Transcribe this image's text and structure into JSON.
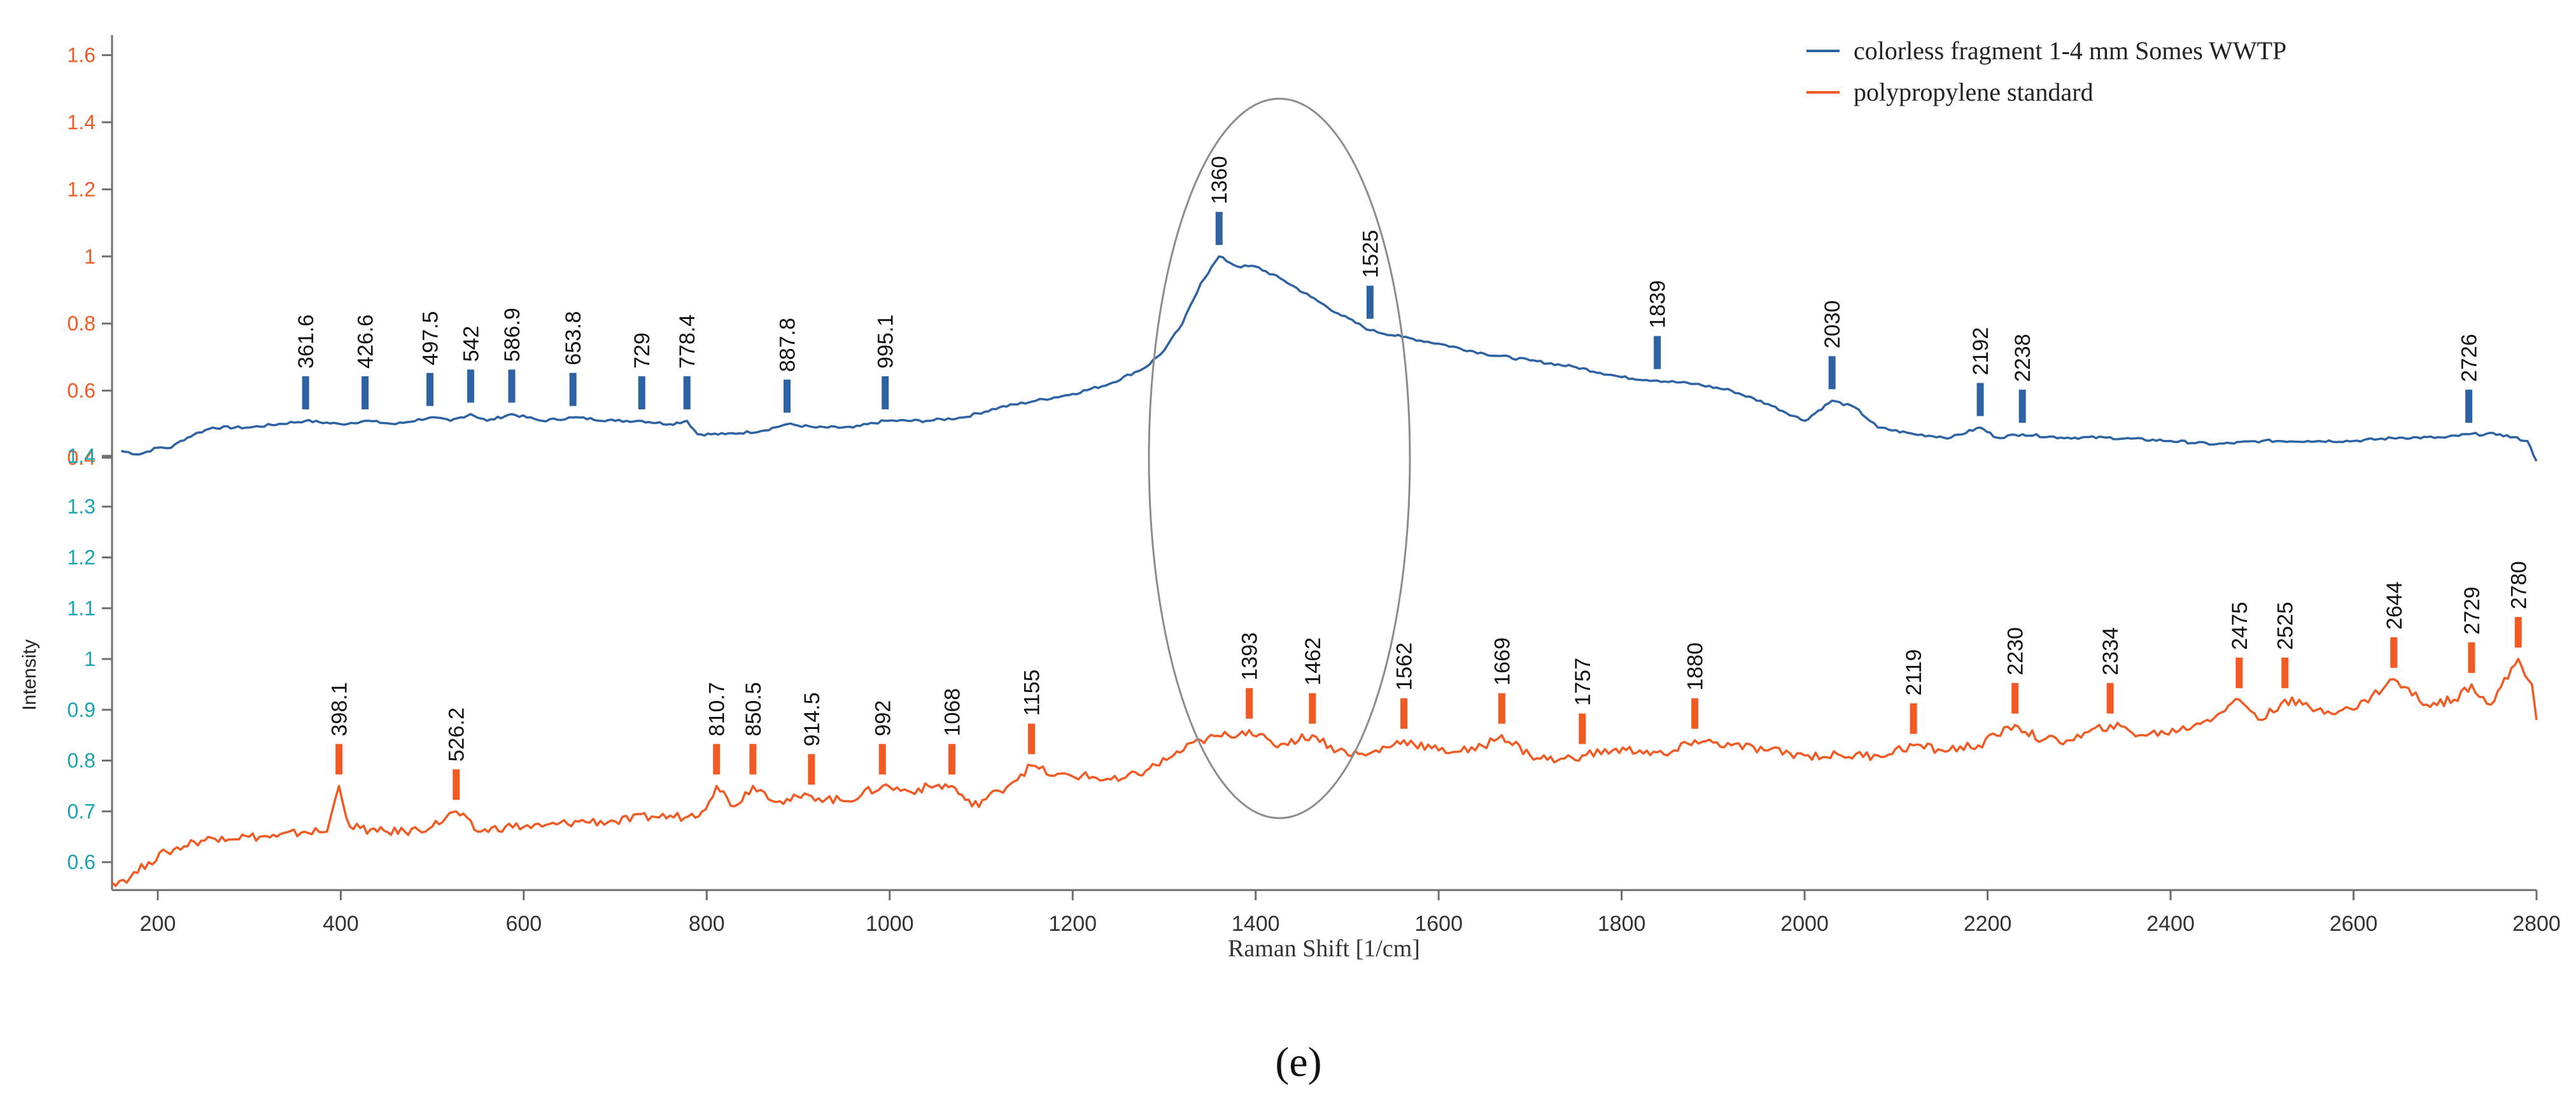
{
  "figure_label": "(e)",
  "chart_data": {
    "type": "line",
    "xlabel": "Raman Shift [1/cm]",
    "ylabel": "Intensity",
    "xlim": [
      150,
      2800
    ],
    "x_ticks": [
      "200",
      "400",
      "600",
      "800",
      "1000",
      "1200",
      "1400",
      "1600",
      "1800",
      "2000",
      "2200",
      "2400",
      "2600",
      "2800"
    ],
    "grid": false,
    "legend_position": "top-right",
    "annotation": "ellipse highlighting the 1360 / 1393 / 1462 / 1525 cm-1 region",
    "series": [
      {
        "name": "colorless fragment 1-4 mm Somes WWTP",
        "color": "#2d62a3",
        "axis": "upper",
        "ylim": [
          0.36,
          1.66
        ],
        "y_ticks": [
          "0.4",
          "0.6",
          "0.8",
          "1",
          "1.2",
          "1.4",
          "1.6"
        ],
        "tick_color": "#f15a22",
        "points": [
          [
            160,
            0.42
          ],
          [
            180,
            0.41
          ],
          [
            200,
            0.43
          ],
          [
            215,
            0.43
          ],
          [
            225,
            0.45
          ],
          [
            240,
            0.47
          ],
          [
            260,
            0.49
          ],
          [
            300,
            0.49
          ],
          [
            361.6,
            0.51
          ],
          [
            400,
            0.5
          ],
          [
            426.6,
            0.51
          ],
          [
            460,
            0.5
          ],
          [
            497.5,
            0.52
          ],
          [
            520,
            0.51
          ],
          [
            542,
            0.53
          ],
          [
            560,
            0.51
          ],
          [
            586.9,
            0.53
          ],
          [
            620,
            0.51
          ],
          [
            653.8,
            0.52
          ],
          [
            700,
            0.51
          ],
          [
            729,
            0.51
          ],
          [
            760,
            0.5
          ],
          [
            778.4,
            0.51
          ],
          [
            790,
            0.47
          ],
          [
            820,
            0.47
          ],
          [
            860,
            0.48
          ],
          [
            887.8,
            0.5
          ],
          [
            920,
            0.49
          ],
          [
            960,
            0.49
          ],
          [
            995.1,
            0.51
          ],
          [
            1040,
            0.51
          ],
          [
            1080,
            0.52
          ],
          [
            1120,
            0.55
          ],
          [
            1160,
            0.57
          ],
          [
            1200,
            0.59
          ],
          [
            1240,
            0.62
          ],
          [
            1280,
            0.67
          ],
          [
            1300,
            0.72
          ],
          [
            1320,
            0.8
          ],
          [
            1340,
            0.92
          ],
          [
            1360,
            1.0
          ],
          [
            1380,
            0.97
          ],
          [
            1400,
            0.97
          ],
          [
            1430,
            0.93
          ],
          [
            1460,
            0.88
          ],
          [
            1490,
            0.83
          ],
          [
            1525,
            0.78
          ],
          [
            1560,
            0.76
          ],
          [
            1600,
            0.74
          ],
          [
            1650,
            0.71
          ],
          [
            1700,
            0.69
          ],
          [
            1750,
            0.67
          ],
          [
            1800,
            0.64
          ],
          [
            1839,
            0.63
          ],
          [
            1880,
            0.62
          ],
          [
            1920,
            0.6
          ],
          [
            1960,
            0.56
          ],
          [
            2000,
            0.51
          ],
          [
            2030,
            0.57
          ],
          [
            2055,
            0.55
          ],
          [
            2080,
            0.49
          ],
          [
            2120,
            0.47
          ],
          [
            2160,
            0.46
          ],
          [
            2192,
            0.49
          ],
          [
            2210,
            0.46
          ],
          [
            2238,
            0.47
          ],
          [
            2280,
            0.46
          ],
          [
            2330,
            0.46
          ],
          [
            2400,
            0.45
          ],
          [
            2450,
            0.44
          ],
          [
            2500,
            0.45
          ],
          [
            2550,
            0.45
          ],
          [
            2600,
            0.45
          ],
          [
            2650,
            0.46
          ],
          [
            2700,
            0.46
          ],
          [
            2726,
            0.47
          ],
          [
            2760,
            0.47
          ],
          [
            2790,
            0.45
          ],
          [
            2800,
            0.39
          ]
        ],
        "peaks": [
          {
            "x": 361.6,
            "label": "361.6"
          },
          {
            "x": 426.6,
            "label": "426.6"
          },
          {
            "x": 497.5,
            "label": "497.5"
          },
          {
            "x": 542,
            "label": "542"
          },
          {
            "x": 586.9,
            "label": "586.9"
          },
          {
            "x": 653.8,
            "label": "653.8"
          },
          {
            "x": 729,
            "label": "729"
          },
          {
            "x": 778.4,
            "label": "778.4"
          },
          {
            "x": 887.8,
            "label": "887.8"
          },
          {
            "x": 995.1,
            "label": "995.1"
          },
          {
            "x": 1360,
            "label": "1360"
          },
          {
            "x": 1525,
            "label": "1525"
          },
          {
            "x": 1839,
            "label": "1839"
          },
          {
            "x": 2030,
            "label": "2030"
          },
          {
            "x": 2192,
            "label": "2192"
          },
          {
            "x": 2238,
            "label": "2238"
          },
          {
            "x": 2726,
            "label": "2726"
          }
        ]
      },
      {
        "name": "polypropylene standard",
        "color": "#f15a22",
        "axis": "lower",
        "ylim": [
          0.545,
          1.42
        ],
        "y_ticks": [
          "0.6",
          "0.7",
          "0.8",
          "0.9",
          "1",
          "1.1",
          "1.2",
          "1.3",
          "1.4"
        ],
        "tick_color": "#1aa3b0",
        "points": [
          [
            150,
            0.56
          ],
          [
            170,
            0.57
          ],
          [
            190,
            0.6
          ],
          [
            210,
            0.62
          ],
          [
            240,
            0.64
          ],
          [
            270,
            0.65
          ],
          [
            300,
            0.65
          ],
          [
            330,
            0.65
          ],
          [
            360,
            0.66
          ],
          [
            385,
            0.66
          ],
          [
            398.1,
            0.75
          ],
          [
            410,
            0.67
          ],
          [
            440,
            0.66
          ],
          [
            470,
            0.66
          ],
          [
            500,
            0.67
          ],
          [
            526.2,
            0.7
          ],
          [
            550,
            0.66
          ],
          [
            580,
            0.67
          ],
          [
            620,
            0.67
          ],
          [
            660,
            0.68
          ],
          [
            700,
            0.68
          ],
          [
            740,
            0.69
          ],
          [
            780,
            0.69
          ],
          [
            795,
            0.7
          ],
          [
            810.7,
            0.75
          ],
          [
            830,
            0.71
          ],
          [
            850.5,
            0.75
          ],
          [
            880,
            0.72
          ],
          [
            914.5,
            0.73
          ],
          [
            950,
            0.72
          ],
          [
            992,
            0.75
          ],
          [
            1020,
            0.74
          ],
          [
            1050,
            0.75
          ],
          [
            1068,
            0.75
          ],
          [
            1090,
            0.71
          ],
          [
            1120,
            0.74
          ],
          [
            1155,
            0.79
          ],
          [
            1180,
            0.77
          ],
          [
            1210,
            0.77
          ],
          [
            1250,
            0.76
          ],
          [
            1280,
            0.78
          ],
          [
            1310,
            0.81
          ],
          [
            1340,
            0.84
          ],
          [
            1370,
            0.85
          ],
          [
            1393,
            0.86
          ],
          [
            1420,
            0.83
          ],
          [
            1462,
            0.85
          ],
          [
            1490,
            0.82
          ],
          [
            1520,
            0.81
          ],
          [
            1562,
            0.84
          ],
          [
            1600,
            0.82
          ],
          [
            1640,
            0.82
          ],
          [
            1669,
            0.85
          ],
          [
            1700,
            0.81
          ],
          [
            1730,
            0.8
          ],
          [
            1757,
            0.81
          ],
          [
            1790,
            0.82
          ],
          [
            1820,
            0.82
          ],
          [
            1850,
            0.81
          ],
          [
            1880,
            0.84
          ],
          [
            1920,
            0.83
          ],
          [
            1960,
            0.82
          ],
          [
            2000,
            0.81
          ],
          [
            2040,
            0.81
          ],
          [
            2080,
            0.81
          ],
          [
            2119,
            0.83
          ],
          [
            2150,
            0.82
          ],
          [
            2190,
            0.83
          ],
          [
            2230,
            0.87
          ],
          [
            2260,
            0.84
          ],
          [
            2290,
            0.84
          ],
          [
            2334,
            0.87
          ],
          [
            2370,
            0.85
          ],
          [
            2410,
            0.86
          ],
          [
            2440,
            0.88
          ],
          [
            2475,
            0.92
          ],
          [
            2500,
            0.88
          ],
          [
            2525,
            0.92
          ],
          [
            2560,
            0.9
          ],
          [
            2600,
            0.9
          ],
          [
            2644,
            0.96
          ],
          [
            2680,
            0.91
          ],
          [
            2710,
            0.92
          ],
          [
            2729,
            0.95
          ],
          [
            2750,
            0.91
          ],
          [
            2780,
            1.0
          ],
          [
            2795,
            0.95
          ],
          [
            2800,
            0.88
          ]
        ],
        "peaks": [
          {
            "x": 398.1,
            "label": "398.1"
          },
          {
            "x": 526.2,
            "label": "526.2"
          },
          {
            "x": 810.7,
            "label": "810.7"
          },
          {
            "x": 850.5,
            "label": "850.5"
          },
          {
            "x": 914.5,
            "label": "914.5"
          },
          {
            "x": 992,
            "label": "992"
          },
          {
            "x": 1068,
            "label": "1068"
          },
          {
            "x": 1155,
            "label": "1155"
          },
          {
            "x": 1393,
            "label": "1393"
          },
          {
            "x": 1462,
            "label": "1462"
          },
          {
            "x": 1562,
            "label": "1562"
          },
          {
            "x": 1669,
            "label": "1669"
          },
          {
            "x": 1757,
            "label": "1757"
          },
          {
            "x": 1880,
            "label": "1880"
          },
          {
            "x": 2119,
            "label": "2119"
          },
          {
            "x": 2230,
            "label": "2230"
          },
          {
            "x": 2334,
            "label": "2334"
          },
          {
            "x": 2475,
            "label": "2475"
          },
          {
            "x": 2525,
            "label": "2525"
          },
          {
            "x": 2644,
            "label": "2644"
          },
          {
            "x": 2729,
            "label": "2729"
          },
          {
            "x": 2780,
            "label": "2780"
          }
        ]
      }
    ]
  }
}
